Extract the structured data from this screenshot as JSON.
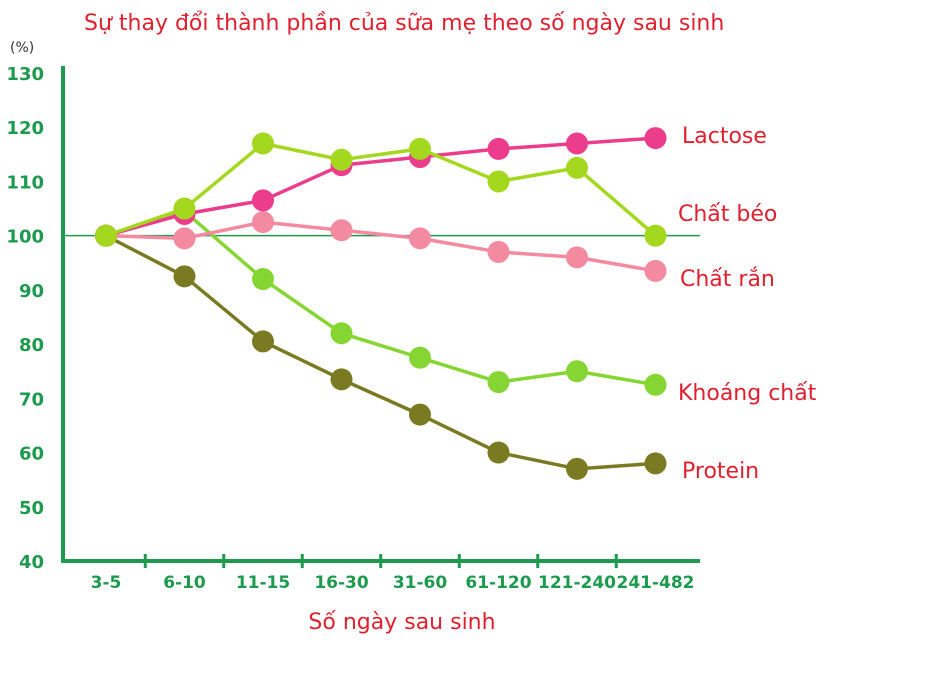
{
  "chart_data": {
    "type": "line",
    "title": "Sự thay đổi thành phần của sữa mẹ theo số ngày sau sinh",
    "ylabel": "(%)",
    "xlabel": "Số ngày sau sinh",
    "categories": [
      "3-5",
      "6-10",
      "11-15",
      "16-30",
      "31-60",
      "61-120",
      "121-240",
      "241-482"
    ],
    "yticks": [
      40,
      50,
      60,
      70,
      80,
      90,
      100,
      110,
      120,
      130
    ],
    "ylim": [
      40,
      130
    ],
    "reference_line": 100,
    "grid": false,
    "legend": "labels at line ends (right)",
    "series": [
      {
        "name": "Lactose",
        "color": "#ec3c8c",
        "values": [
          100,
          104,
          106.5,
          113,
          114.5,
          116,
          117,
          118
        ]
      },
      {
        "name": "Chất béo",
        "color": "#a4d81e",
        "values": [
          100,
          105,
          117,
          114,
          116,
          110,
          112.5,
          100
        ]
      },
      {
        "name": "Chất rắn",
        "color": "#f48aa0",
        "values": [
          100,
          99.5,
          102.5,
          101,
          99.5,
          97,
          96,
          93.5
        ]
      },
      {
        "name": "Khoáng chất",
        "color": "#86d633",
        "values": [
          100,
          104.5,
          92,
          82,
          77.5,
          73,
          75,
          72.5
        ]
      },
      {
        "name": "Protein",
        "color": "#7a7a22",
        "values": [
          100,
          92.5,
          80.5,
          73.5,
          67,
          60,
          57,
          58
        ]
      }
    ]
  }
}
